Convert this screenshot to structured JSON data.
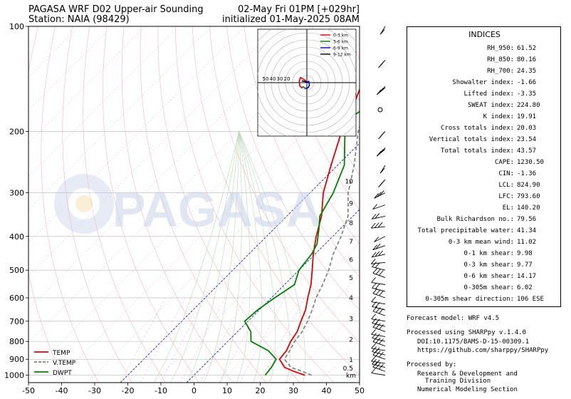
{
  "header": {
    "title_left_1": "PAGASA WRF D02 Upper-air Sounding",
    "title_left_2": "Station: NAIA (98429)",
    "title_right_1": "02-May Fri 01PM [+029hr]",
    "title_right_2": "initialized 01-May-2025 08AM"
  },
  "watermark": "PAGASA",
  "chart_data": {
    "type": "line",
    "title": "PAGASA WRF D02 Upper-air Sounding",
    "xlabel": "",
    "ylabel": "",
    "xlim": [
      -50,
      50
    ],
    "ylim": [
      1000,
      100
    ],
    "y_scale": "log",
    "x_ticks": [
      -50,
      -40,
      -30,
      -20,
      -10,
      0,
      10,
      20,
      30,
      40,
      50
    ],
    "y_ticks": [
      100,
      200,
      300,
      400,
      500,
      600,
      700,
      800,
      900,
      1000
    ],
    "grid": true,
    "legend_position": "lower-left",
    "height_axis": {
      "label": "km",
      "ticks": [
        {
          "label": "10",
          "p": 278
        },
        {
          "label": "9",
          "p": 322
        },
        {
          "label": "8",
          "p": 366
        },
        {
          "label": "7",
          "p": 414
        },
        {
          "label": "6",
          "p": 466
        },
        {
          "label": "5",
          "p": 526
        },
        {
          "label": "4",
          "p": 600
        },
        {
          "label": "3",
          "p": 690
        },
        {
          "label": "2",
          "p": 790
        },
        {
          "label": "1",
          "p": 904
        },
        {
          "label": "0.5",
          "p": 955
        }
      ]
    },
    "series": [
      {
        "name": "TEMP",
        "color": "#e00000",
        "style": "solid",
        "points": [
          [
            33.5,
            1000
          ],
          [
            29,
            975
          ],
          [
            25,
            950
          ],
          [
            21,
            900
          ],
          [
            20.5,
            850
          ],
          [
            19,
            800
          ],
          [
            18,
            750
          ],
          [
            16,
            700
          ],
          [
            14,
            650
          ],
          [
            11,
            600
          ],
          [
            8,
            550
          ],
          [
            4,
            500
          ],
          [
            -0.5,
            450
          ],
          [
            -5,
            400
          ],
          [
            -9.5,
            350
          ],
          [
            -16,
            300
          ],
          [
            -22,
            250
          ],
          [
            -29,
            200
          ],
          [
            -33,
            170
          ],
          [
            -38.5,
            140
          ],
          [
            -40.5,
            120
          ],
          [
            -40,
            100
          ]
        ]
      },
      {
        "name": "V.TEMP",
        "color": "#808080",
        "style": "dashed",
        "points": [
          [
            35.5,
            1000
          ],
          [
            31.5,
            975
          ],
          [
            27,
            950
          ],
          [
            22.5,
            900
          ],
          [
            21.5,
            850
          ],
          [
            20.2,
            800
          ],
          [
            19.5,
            750
          ],
          [
            18,
            700
          ],
          [
            16,
            650
          ],
          [
            13.5,
            600
          ],
          [
            11.5,
            550
          ],
          [
            9,
            500
          ],
          [
            5.5,
            450
          ],
          [
            2.5,
            400
          ],
          [
            -1.5,
            350
          ],
          [
            -8.5,
            300
          ],
          [
            -15,
            250
          ],
          [
            -24,
            200
          ],
          [
            -31,
            160
          ],
          [
            -37.5,
            130
          ],
          [
            -40,
            110
          ],
          [
            -41.5,
            100
          ]
        ]
      },
      {
        "name": "DWPT",
        "color": "#008000",
        "style": "solid",
        "points": [
          [
            21.5,
            1000
          ],
          [
            21,
            950
          ],
          [
            20,
            900
          ],
          [
            15,
            850
          ],
          [
            7,
            800
          ],
          [
            4,
            750
          ],
          [
            -1,
            700
          ],
          [
            -0.5,
            650
          ],
          [
            1,
            600
          ],
          [
            3,
            550
          ],
          [
            0,
            500
          ],
          [
            -1,
            450
          ],
          [
            -2.5,
            420
          ],
          [
            -6.5,
            380
          ],
          [
            -10,
            350
          ],
          [
            -13,
            300
          ],
          [
            -18,
            250
          ],
          [
            -28,
            200
          ],
          [
            -30,
            180
          ],
          [
            -27,
            150
          ],
          [
            -30,
            130
          ],
          [
            -35,
            110
          ],
          [
            -35,
            100
          ]
        ]
      }
    ]
  },
  "hodograph": {
    "rings": [
      "50",
      "40",
      "30",
      "20"
    ],
    "legend": [
      "0-3 km",
      "3-6 km",
      "6-9 km",
      "9-12 km"
    ],
    "colors": [
      "#e00000",
      "#008000",
      "#0000cc",
      "#000000"
    ]
  },
  "indices": {
    "title": "INDICES",
    "rows": [
      {
        "label": "RH_950:",
        "value": "61.52"
      },
      {
        "label": "RH_850:",
        "value": "80.16"
      },
      {
        "label": "RH_700:",
        "value": "24.35"
      },
      {
        "label": "Showalter index:",
        "value": "-1.66"
      },
      {
        "label": "Lifted index:",
        "value": "-3.35"
      },
      {
        "label": "SWEAT index:",
        "value": "224.80"
      },
      {
        "label": "K index:",
        "value": "19.91"
      },
      {
        "label": "Cross totals index:",
        "value": "20.03"
      },
      {
        "label": "Vertical totals index:",
        "value": "23.54"
      },
      {
        "label": "Total totals index:",
        "value": "43.57"
      },
      {
        "label": "CAPE:",
        "value": "1230.50"
      },
      {
        "label": "CIN:",
        "value": "-1.36"
      },
      {
        "label": "LCL:",
        "value": "824.90"
      },
      {
        "label": "LFC:",
        "value": "793.60"
      },
      {
        "label": "EL:",
        "value": "140.20"
      },
      {
        "label": "Bulk Richardson no.:",
        "value": "79.56"
      },
      {
        "label": "Total precipitable water:",
        "value": "41.34"
      },
      {
        "label": "0-3 km mean wind:",
        "value": "11.02"
      },
      {
        "label": "0-1 km shear:",
        "value": "9.98"
      },
      {
        "label": "0-3 km shear:",
        "value": "9.77"
      },
      {
        "label": "0-6 km shear:",
        "value": "14.17"
      },
      {
        "label": "0-305m shear:",
        "value": "6.02"
      },
      {
        "label": "0-305m shear direction:",
        "value": "106 ESE"
      }
    ]
  },
  "footer": {
    "forecast_model": "Forecast model: WRF v4.5",
    "processed_using": "Processed using SHARPpy v.1.4.0",
    "doi": "DOI:10.1175/BAMS-D-15-00309.1",
    "url": "https://github.com/sharppy/SHARPpy",
    "processed_by": "Processed by:",
    "division_1": "Research & Development and",
    "division_2": "Training Division",
    "section": "Numerical Modeling Section"
  }
}
